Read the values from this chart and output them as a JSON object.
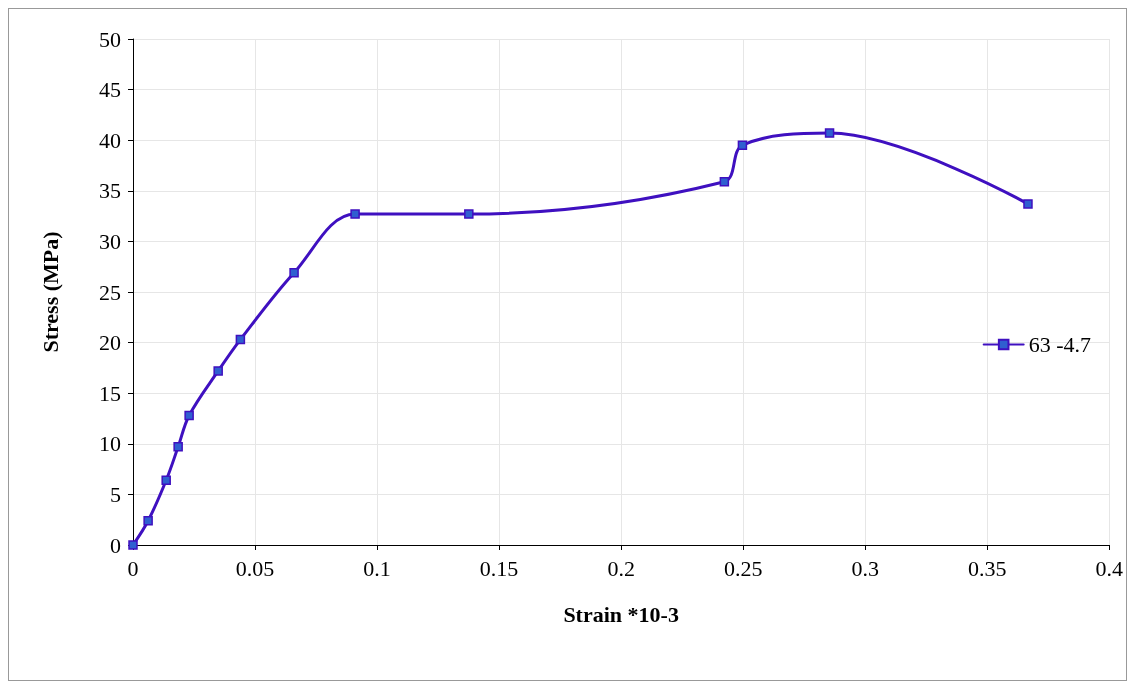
{
  "chart_data": {
    "type": "line",
    "xlabel": "Strain *10-3",
    "ylabel": "Stress (MPa)",
    "series": [
      {
        "name": "63 -4.7",
        "color": "#3f10c0",
        "x": [
          0,
          0.0062,
          0.0136,
          0.0185,
          0.023,
          0.0349,
          0.044,
          0.066,
          0.091,
          0.1376,
          0.2423,
          0.2497,
          0.2854,
          0.3667
        ],
        "values": [
          0,
          2.4,
          6.4,
          9.7,
          12.8,
          17.2,
          20.3,
          26.9,
          32.7,
          32.7,
          35.9,
          39.5,
          40.7,
          33.7
        ]
      }
    ],
    "xlim": [
      0,
      0.4
    ],
    "xticks": [
      0,
      0.05,
      0.1,
      0.15,
      0.2,
      0.25,
      0.3,
      0.35,
      0.4
    ],
    "ylim": [
      0,
      50
    ],
    "yticks": [
      0,
      5,
      10,
      15,
      20,
      25,
      30,
      35,
      40,
      45,
      50
    ],
    "grid": true,
    "legend": "right",
    "marker": "square",
    "line_style": "solid"
  }
}
